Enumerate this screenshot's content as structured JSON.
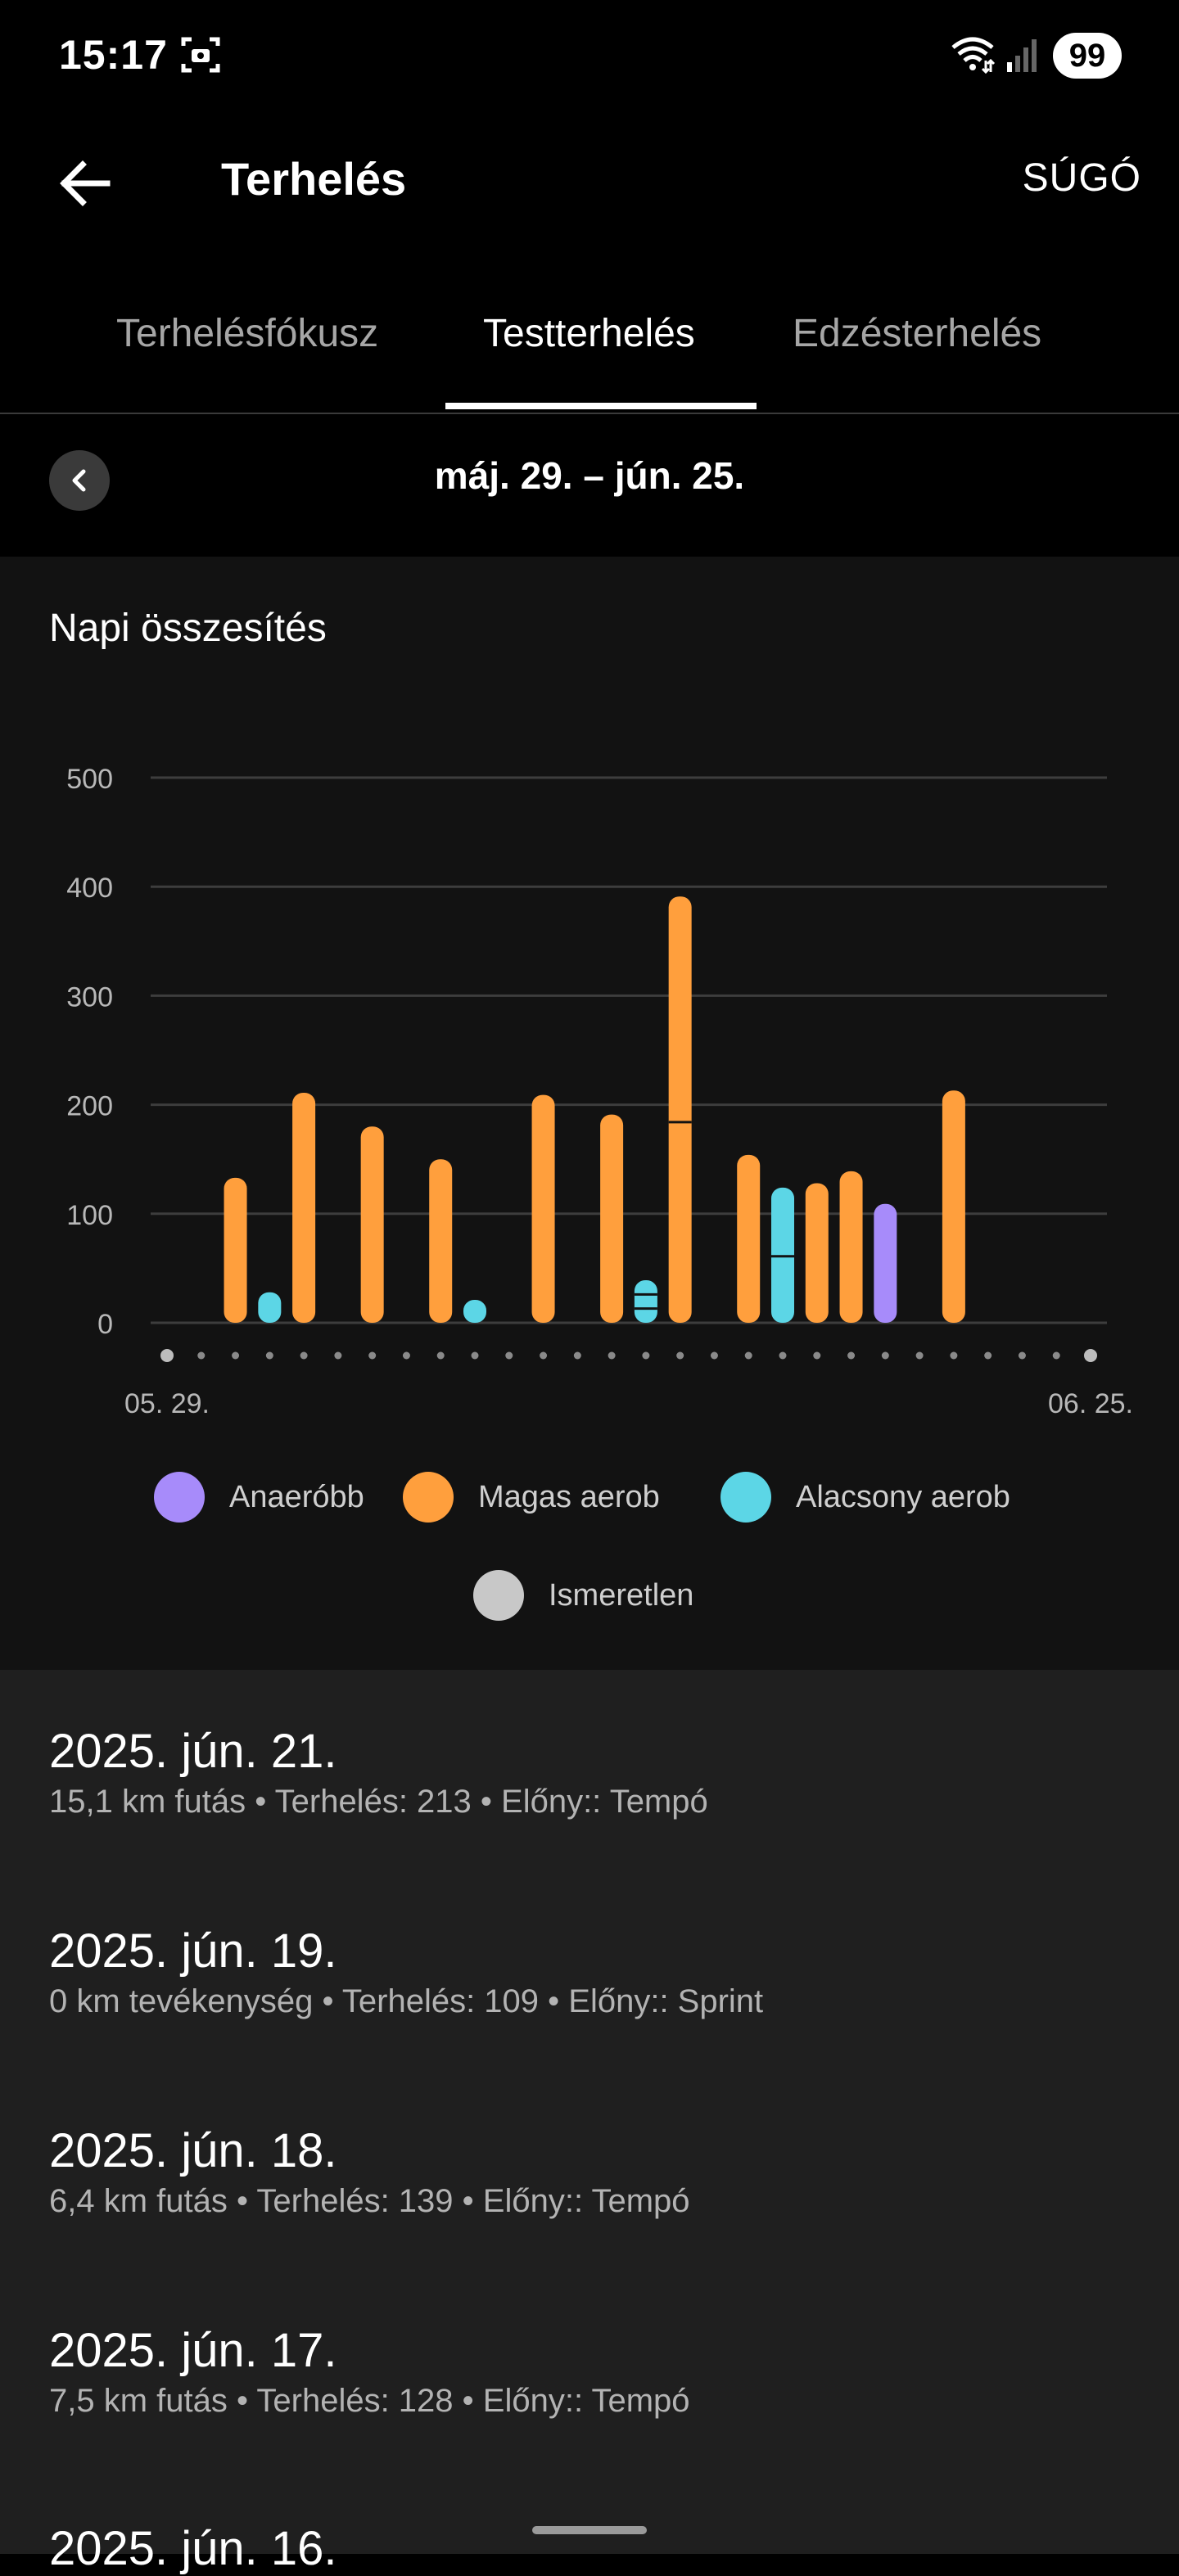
{
  "status": {
    "time": "15:17",
    "battery": "99"
  },
  "appbar": {
    "title": "Terhelés",
    "help": "SÚGÓ"
  },
  "tabs": [
    {
      "label": "Terhelésfókusz",
      "active": false
    },
    {
      "label": "Testterhelés",
      "active": true
    },
    {
      "label": "Edzésterhelés",
      "active": false
    }
  ],
  "date_range": "máj. 29. – jún. 25.",
  "card_title": "Napi összesítés",
  "colors": {
    "anaerobic": "#A78BFA",
    "high_aerobic": "#FF9F3D",
    "low_aerobic": "#5CD6E6",
    "unknown": "#C8C8C8"
  },
  "chart_data": {
    "type": "bar",
    "stacked": true,
    "x_start_label": "05. 29.",
    "x_end_label": "06. 25.",
    "days": 28,
    "ylim": [
      0,
      500
    ],
    "yticks": [
      "500",
      "400",
      "300",
      "200",
      "100",
      "0"
    ],
    "grid": true,
    "legend_position": "bottom",
    "series": [
      {
        "name": "Anaeróbb",
        "key": "anaerobic"
      },
      {
        "name": "Magas aerob",
        "key": "high_aerobic"
      },
      {
        "name": "Alacsony aerob",
        "key": "low_aerobic"
      },
      {
        "name": "Ismeretlen",
        "key": "unknown"
      }
    ],
    "bars": [
      {
        "day": 2,
        "segments": [
          {
            "key": "high_aerobic",
            "values": [
              133
            ]
          }
        ]
      },
      {
        "day": 3,
        "segments": [
          {
            "key": "low_aerobic",
            "values": [
              28
            ]
          }
        ]
      },
      {
        "day": 4,
        "segments": [
          {
            "key": "high_aerobic",
            "values": [
              211
            ]
          }
        ]
      },
      {
        "day": 6,
        "segments": [
          {
            "key": "high_aerobic",
            "values": [
              180
            ]
          }
        ]
      },
      {
        "day": 8,
        "segments": [
          {
            "key": "high_aerobic",
            "values": [
              150
            ]
          }
        ]
      },
      {
        "day": 9,
        "segments": [
          {
            "key": "low_aerobic",
            "values": [
              21
            ]
          }
        ]
      },
      {
        "day": 11,
        "segments": [
          {
            "key": "high_aerobic",
            "values": [
              209
            ]
          }
        ]
      },
      {
        "day": 13,
        "segments": [
          {
            "key": "high_aerobic",
            "values": [
              191
            ]
          }
        ]
      },
      {
        "day": 14,
        "segments": [
          {
            "key": "low_aerobic",
            "values": [
              13,
              13,
              13
            ]
          }
        ]
      },
      {
        "day": 15,
        "segments": [
          {
            "key": "high_aerobic",
            "values": [
              184,
              207
            ]
          }
        ]
      },
      {
        "day": 17,
        "segments": [
          {
            "key": "high_aerobic",
            "values": [
              154
            ]
          }
        ]
      },
      {
        "day": 18,
        "segments": [
          {
            "key": "low_aerobic",
            "values": [
              61,
              63
            ]
          }
        ]
      },
      {
        "day": 19,
        "segments": [
          {
            "key": "high_aerobic",
            "values": [
              128
            ]
          }
        ]
      },
      {
        "day": 20,
        "segments": [
          {
            "key": "high_aerobic",
            "values": [
              139
            ]
          }
        ]
      },
      {
        "day": 21,
        "segments": [
          {
            "key": "anaerobic",
            "values": [
              109
            ]
          }
        ]
      },
      {
        "day": 23,
        "segments": [
          {
            "key": "high_aerobic",
            "values": [
              213
            ]
          }
        ]
      }
    ]
  },
  "legend": [
    {
      "label": "Anaeróbb",
      "key": "anaerobic"
    },
    {
      "label": "Magas aerob",
      "key": "high_aerobic"
    },
    {
      "label": "Alacsony aerob",
      "key": "low_aerobic"
    },
    {
      "label": "Ismeretlen",
      "key": "unknown"
    }
  ],
  "activities": [
    {
      "date": "2025. jún. 21.",
      "detail": "15,1 km futás • Terhelés: 213 • Előny:: Tempó"
    },
    {
      "date": "2025. jún. 19.",
      "detail": "0 km tevékenység • Terhelés: 109 • Előny:: Sprint"
    },
    {
      "date": "2025. jún. 18.",
      "detail": "6,4 km futás • Terhelés: 139 • Előny:: Tempó"
    },
    {
      "date": "2025. jún. 17.",
      "detail": "7,5 km futás • Terhelés: 128 • Előny:: Tempó"
    },
    {
      "date": "2025. jún. 16.",
      "detail": ""
    }
  ]
}
